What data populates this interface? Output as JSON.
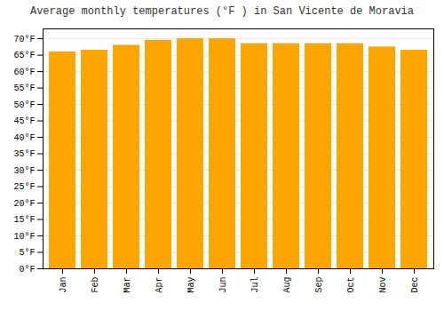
{
  "chart_data": {
    "type": "bar",
    "title": "Average monthly temperatures (°F ) in San Vicente de Moravia",
    "categories": [
      "Jan",
      "Feb",
      "Mar",
      "Apr",
      "May",
      "Jun",
      "Jul",
      "Aug",
      "Sep",
      "Oct",
      "Nov",
      "Dec"
    ],
    "values": [
      66,
      66.5,
      68,
      69.5,
      70,
      70,
      68.5,
      68.5,
      68.5,
      68.5,
      67.5,
      66.5
    ],
    "color": "#FFA500",
    "ylim": [
      0,
      73
    ],
    "yticks": [
      {
        "value": 0,
        "label": "0°F"
      },
      {
        "value": 5,
        "label": "5°F"
      },
      {
        "value": 10,
        "label": "10°F"
      },
      {
        "value": 15,
        "label": "15°F"
      },
      {
        "value": 20,
        "label": "20°F"
      },
      {
        "value": 25,
        "label": "25°F"
      },
      {
        "value": 30,
        "label": "30°F"
      },
      {
        "value": 35,
        "label": "35°F"
      },
      {
        "value": 40,
        "label": "40°F"
      },
      {
        "value": 45,
        "label": "45°F"
      },
      {
        "value": 50,
        "label": "50°F"
      },
      {
        "value": 55,
        "label": "55°F"
      },
      {
        "value": 60,
        "label": "60°F"
      },
      {
        "value": 65,
        "label": "65°F"
      },
      {
        "value": 70,
        "label": "70°F"
      }
    ],
    "grid": true
  }
}
